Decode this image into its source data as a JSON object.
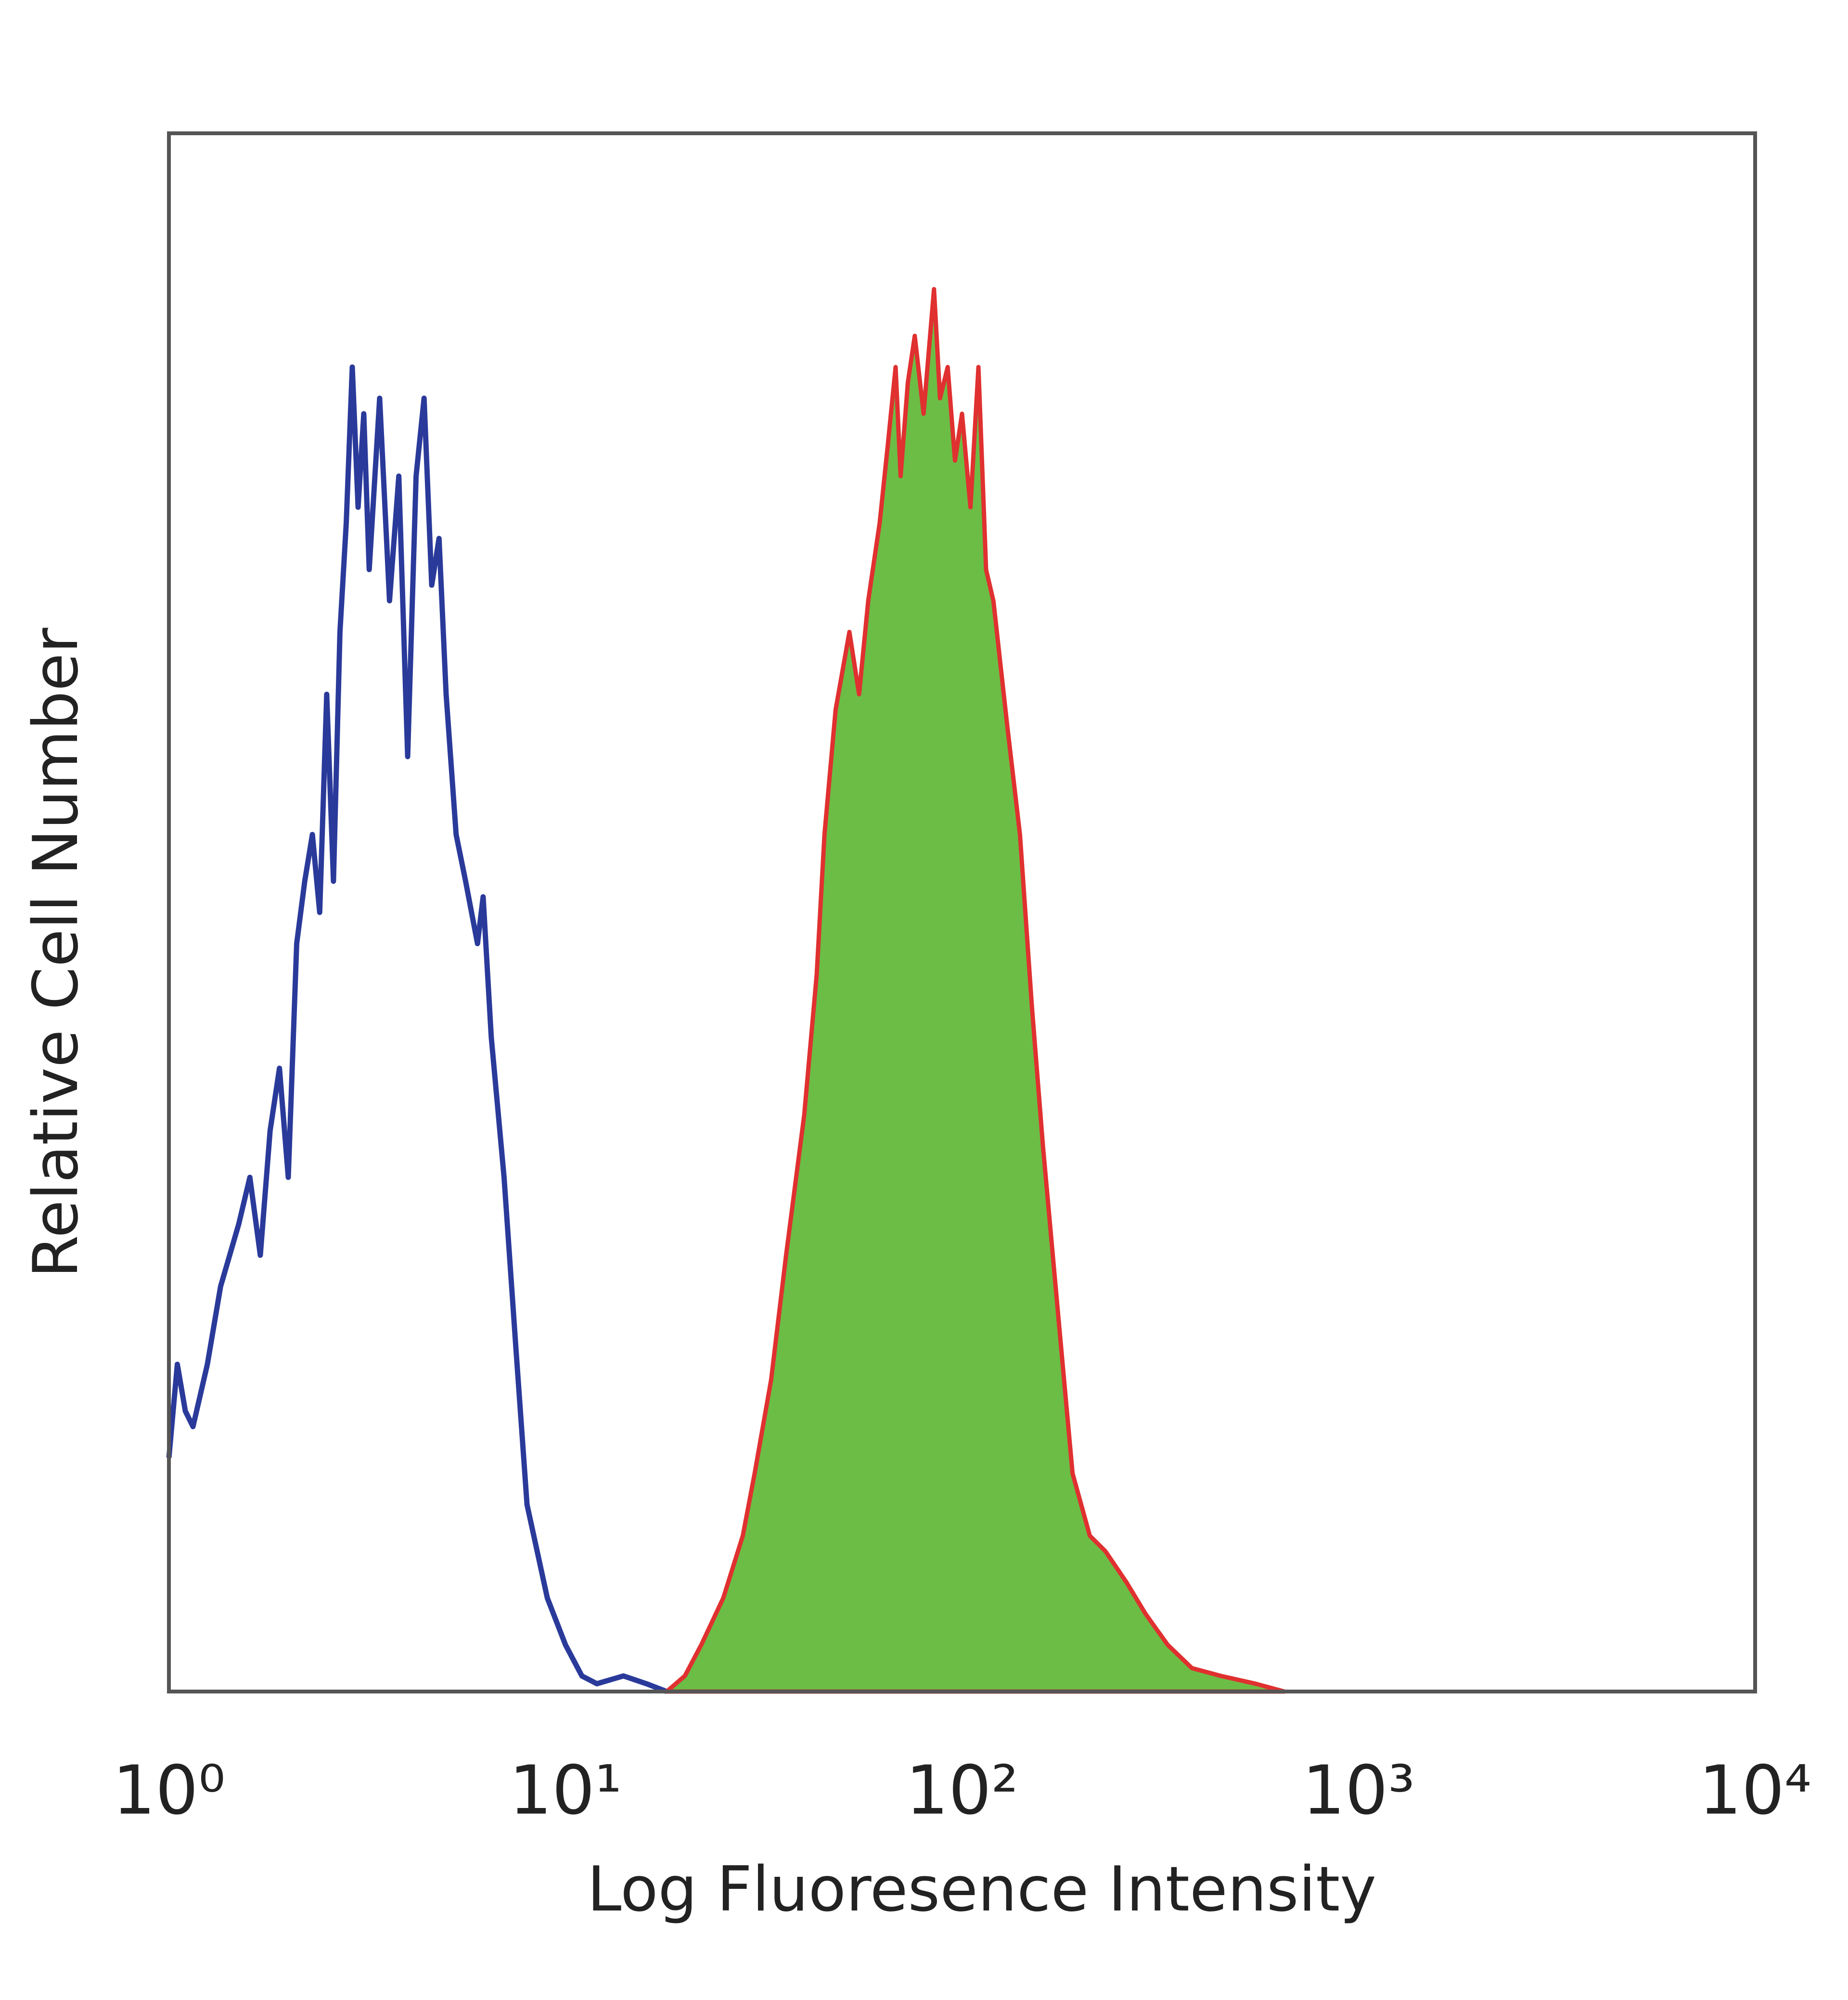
{
  "chart_data": {
    "type": "histogram-overlay",
    "xlabel": "Log Fluoresence Intensity",
    "ylabel": "Relative Cell Number",
    "xscale": "log",
    "xlim": [
      1,
      10000
    ],
    "xticks": [
      {
        "value": 1,
        "label": "10⁰"
      },
      {
        "value": 10,
        "label": "10¹"
      },
      {
        "value": 100,
        "label": "10²"
      },
      {
        "value": 1000,
        "label": "10³"
      },
      {
        "value": 10000,
        "label": "10⁴"
      }
    ],
    "ylim": [
      0,
      100
    ],
    "frame_color": "#555555",
    "series": [
      {
        "color": "#2a3a9a",
        "filled": false,
        "x": [
          1.0,
          1.05,
          1.1,
          1.15,
          1.25,
          1.35,
          1.5,
          1.6,
          1.7,
          1.8,
          1.9,
          2.0,
          2.1,
          2.2,
          2.3,
          2.4,
          2.5,
          2.6,
          2.7,
          2.8,
          2.9,
          3.0,
          3.1,
          3.2,
          3.4,
          3.6,
          3.8,
          4.0,
          4.2,
          4.4,
          4.6,
          4.8,
          5.0,
          5.3,
          5.6,
          6.0,
          6.2,
          6.5,
          7.0,
          7.5,
          8.0,
          9.0,
          10.0,
          11.0,
          12.0,
          14.0,
          16.0,
          18.0
        ],
        "values": [
          15,
          21,
          18,
          17,
          21,
          26,
          30,
          33,
          28,
          36,
          40,
          33,
          48,
          52,
          55,
          50,
          64,
          52,
          68,
          75,
          85,
          76,
          82,
          72,
          83,
          70,
          78,
          60,
          78,
          83,
          71,
          74,
          64,
          55,
          52,
          48,
          51,
          42,
          33,
          22,
          12,
          6,
          3,
          1,
          0.5,
          1,
          0.5,
          0
        ]
      },
      {
        "color": "#6cbd45",
        "edge_color": "#e03030",
        "filled": true,
        "x": [
          18,
          20,
          22,
          25,
          28,
          30,
          33,
          36,
          40,
          43,
          45,
          48,
          52,
          55,
          58,
          62,
          65,
          68,
          70,
          73,
          76,
          80,
          85,
          88,
          92,
          96,
          100,
          105,
          110,
          115,
          120,
          130,
          140,
          150,
          160,
          175,
          190,
          210,
          230,
          260,
          290,
          330,
          380,
          450,
          550,
          650
        ],
        "values": [
          0,
          1,
          3,
          6,
          10,
          14,
          20,
          28,
          37,
          46,
          55,
          63,
          68,
          64,
          70,
          75,
          80,
          85,
          78,
          84,
          87,
          82,
          90,
          83,
          85,
          79,
          82,
          76,
          85,
          72,
          70,
          62,
          55,
          44,
          35,
          24,
          14,
          10,
          9,
          7,
          5,
          3,
          1.5,
          1,
          0.5,
          0
        ]
      }
    ]
  }
}
